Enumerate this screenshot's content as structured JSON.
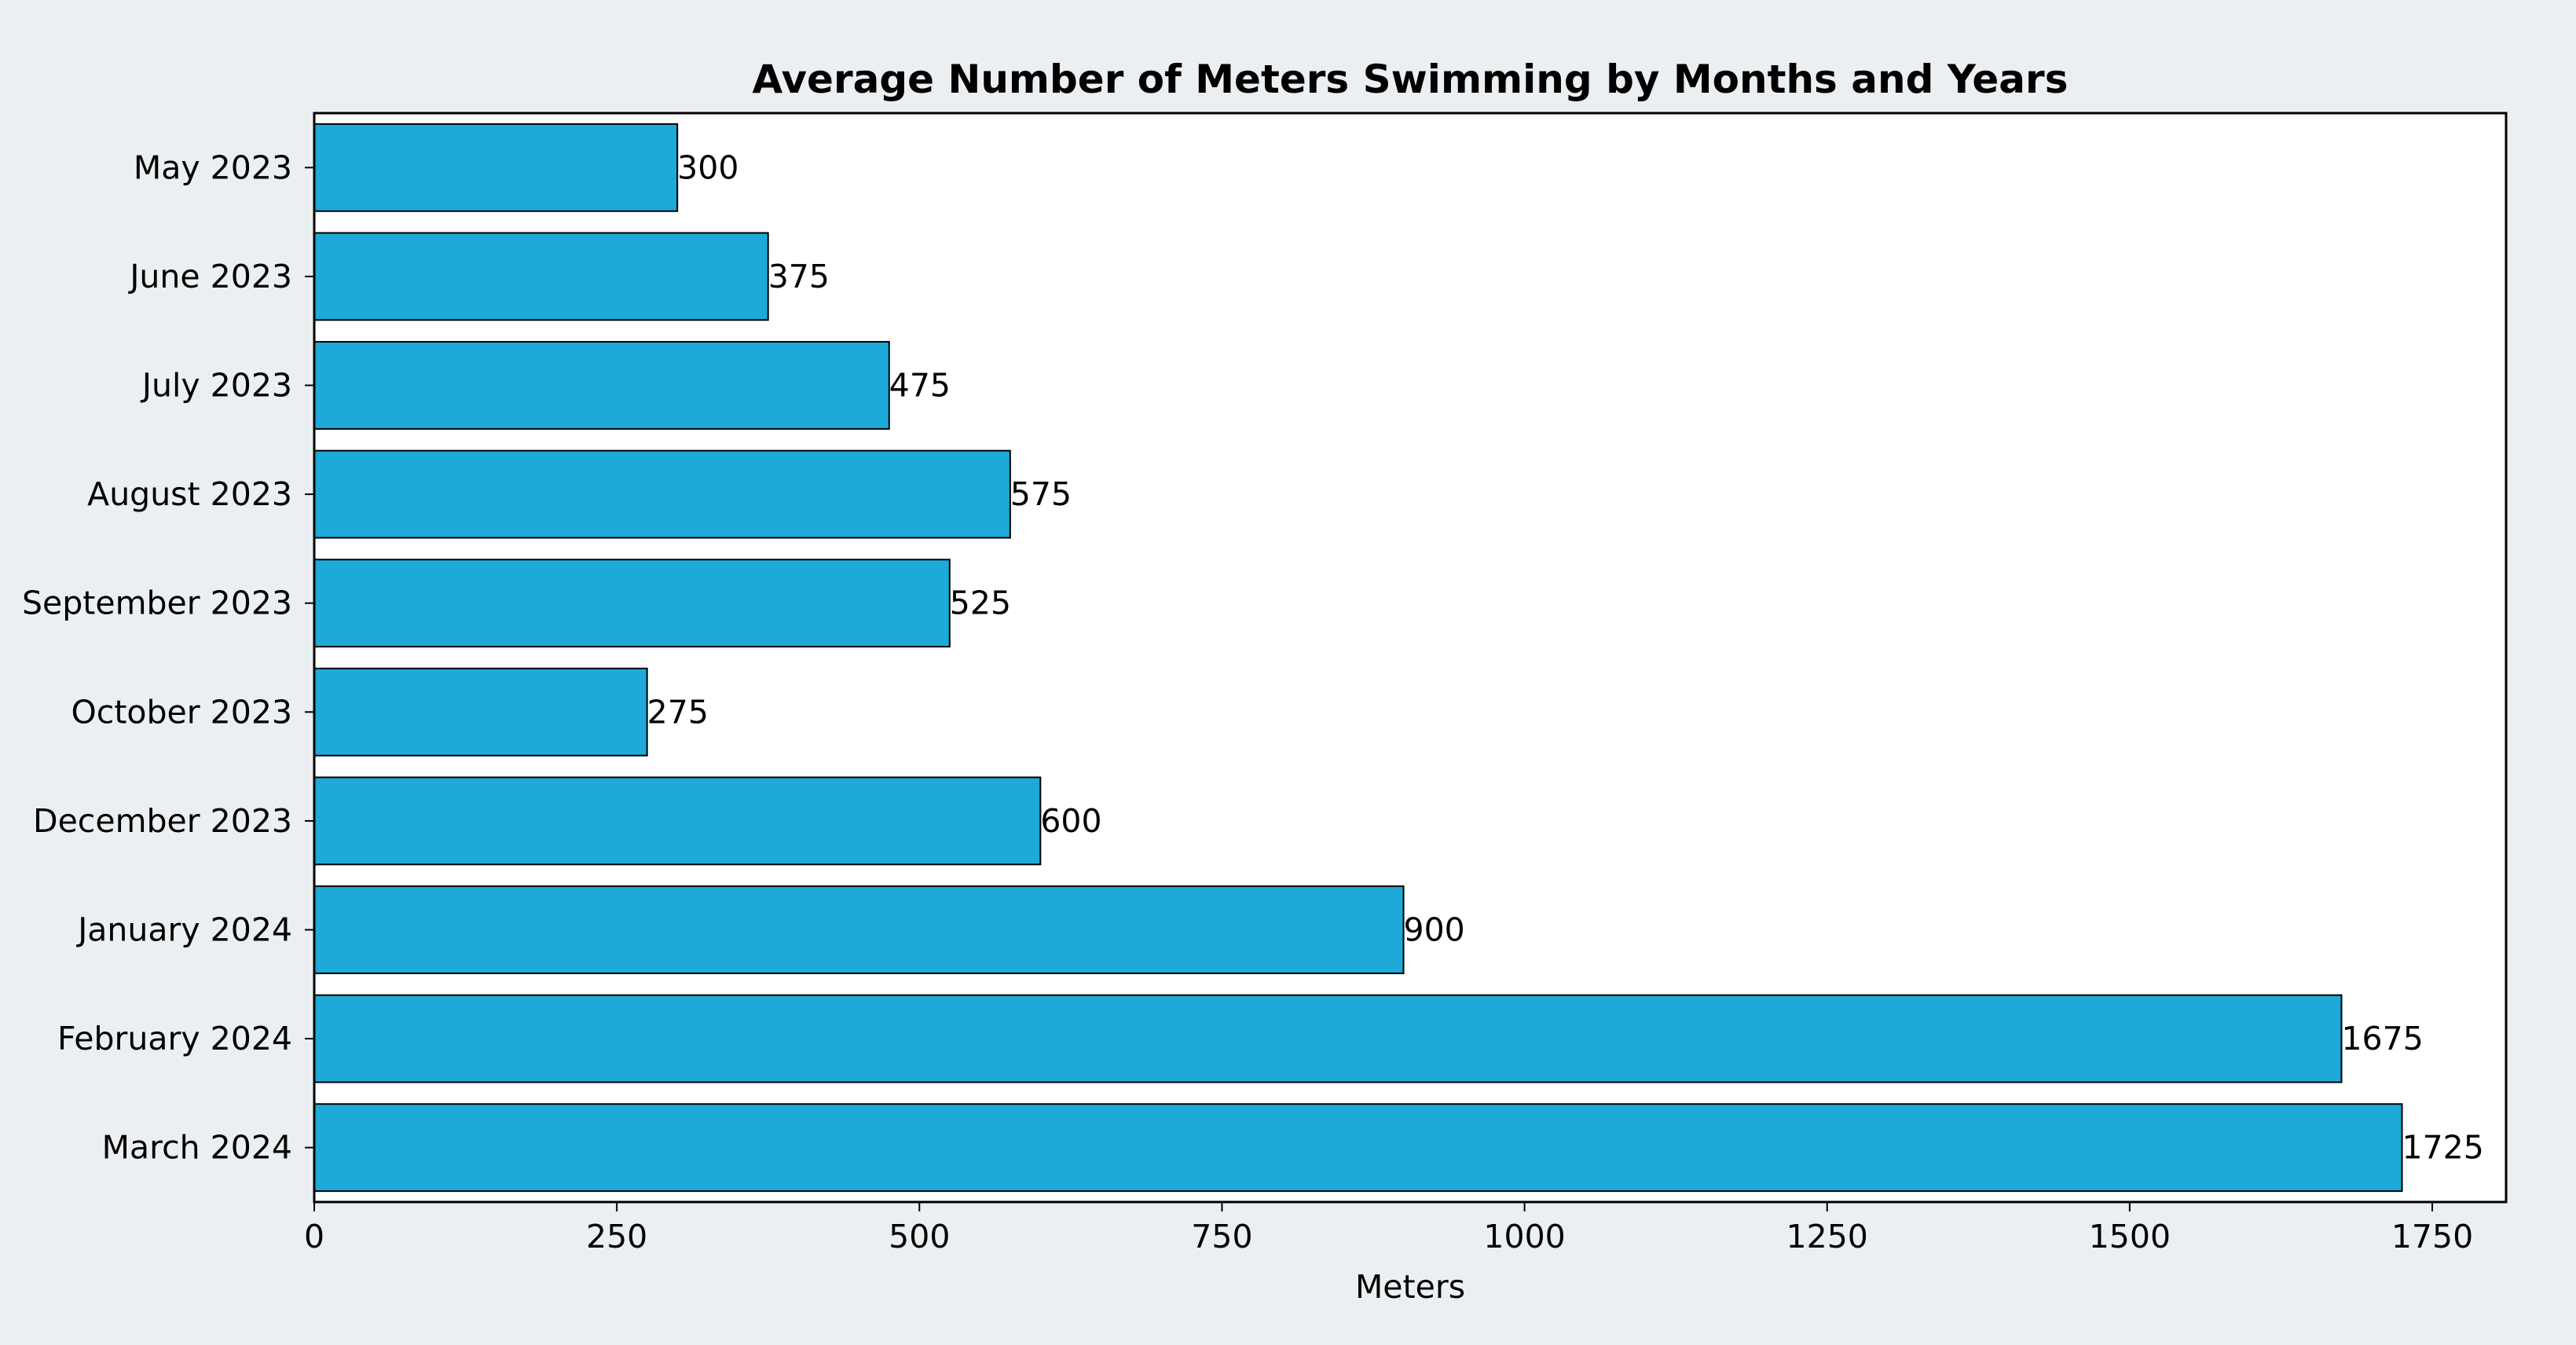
{
  "chart_data": {
    "type": "bar",
    "orientation": "horizontal",
    "title": "Average Number of Meters Swimming by Months and Years",
    "xlabel": "Meters",
    "ylabel": "",
    "categories": [
      "May 2023",
      "June 2023",
      "July 2023",
      "August 2023",
      "September 2023",
      "October 2023",
      "December 2023",
      "January 2024",
      "February 2024",
      "March 2024"
    ],
    "values": [
      300,
      375,
      475,
      575,
      525,
      275,
      600,
      900,
      1675,
      1725
    ],
    "value_labels": [
      "300",
      "375",
      "475",
      "575",
      "525",
      "275",
      "600",
      "900",
      "1675",
      "1725"
    ],
    "xlim": [
      0,
      1811
    ],
    "xticks": [
      0,
      250,
      500,
      750,
      1000,
      1250,
      1500,
      1750
    ],
    "xtick_labels": [
      "0",
      "250",
      "500",
      "750",
      "1000",
      "1250",
      "1500",
      "1750"
    ],
    "grid": false,
    "legend": "none",
    "colors": {
      "bar_fill": "#1eaad9",
      "bar_edge": "#000000",
      "plot_background": "#ffffff",
      "figure_background": "#eceff1",
      "text": "#000000"
    }
  }
}
